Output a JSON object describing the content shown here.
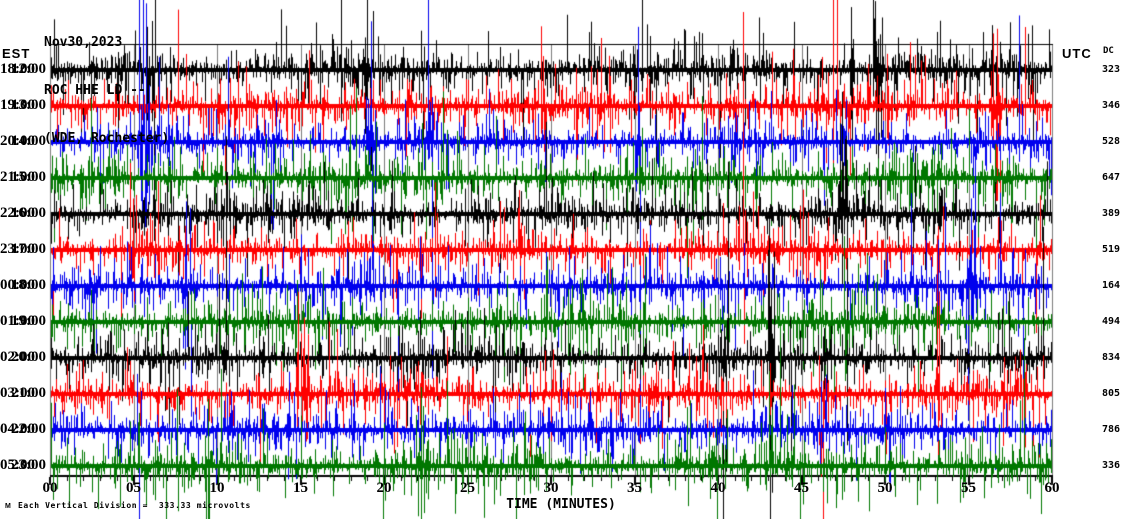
{
  "header": {
    "date": "Nov30,2023",
    "station": "ROC HHE LD --",
    "site": "(WDE, Rochester)"
  },
  "axes": {
    "left_timezone_label": "EST",
    "right_timezone_label": "UTC",
    "dc_column_label": "DC",
    "x_title": "TIME (MINUTES)",
    "x_tick_labels": [
      "00",
      "05",
      "10",
      "15",
      "20",
      "25",
      "30",
      "35",
      "40",
      "45",
      "50",
      "55",
      "60"
    ]
  },
  "footer": {
    "logo_mark": "M",
    "scale_note": "Each Vertical Division =  333.33 microvolts"
  },
  "chart_data": {
    "type": "line",
    "subtype": "helicorder-seismogram",
    "title": "ROC HHE LD -- (WDE, Rochester) Nov30,2023",
    "xlabel": "TIME (MINUTES)",
    "x_range_minutes": [
      0,
      60
    ],
    "x_major_tick_step": 5,
    "x_minor_tick_step": 1,
    "grid": "vertical gray lines every 5 minutes",
    "grid_color": "#7b7b7b",
    "background_color": "#ffffff",
    "axis_color": "#000000",
    "trace_color_cycle": [
      "#000000",
      "#ff0000",
      "#0000ee",
      "#007700"
    ],
    "scale_microvolts_per_division": 333.33,
    "rows": [
      {
        "est": "12:00",
        "utc": "18:00",
        "dc": "323",
        "color": "#000000"
      },
      {
        "est": "13:00",
        "utc": "19:00",
        "dc": "346",
        "color": "#ff0000"
      },
      {
        "est": "14:00",
        "utc": "20:00",
        "dc": "528",
        "color": "#0000ee"
      },
      {
        "est": "15:00",
        "utc": "21:00",
        "dc": "647",
        "color": "#007700"
      },
      {
        "est": "16:00",
        "utc": "22:00",
        "dc": "389",
        "color": "#000000"
      },
      {
        "est": "17:00",
        "utc": "23:00",
        "dc": "519",
        "color": "#ff0000"
      },
      {
        "est": "18:00",
        "utc": "00:00",
        "dc": "164",
        "color": "#0000ee"
      },
      {
        "est": "19:00",
        "utc": "01:00",
        "dc": "494",
        "color": "#007700"
      },
      {
        "est": "20:00",
        "utc": "02:00",
        "dc": "834",
        "color": "#000000"
      },
      {
        "est": "21:00",
        "utc": "03:00",
        "dc": "805",
        "color": "#ff0000"
      },
      {
        "est": "22:00",
        "utc": "04:00",
        "dc": "786",
        "color": "#0000ee"
      },
      {
        "est": "23:00",
        "utc": "05:00",
        "dc": "336",
        "color": "#007700"
      }
    ],
    "waveform_note": "continuous high-frequency seismic background noise; each hourly trace is stochastic with a dense core of roughly one vertical division and sporadic large spikes that cross neighboring traces"
  }
}
